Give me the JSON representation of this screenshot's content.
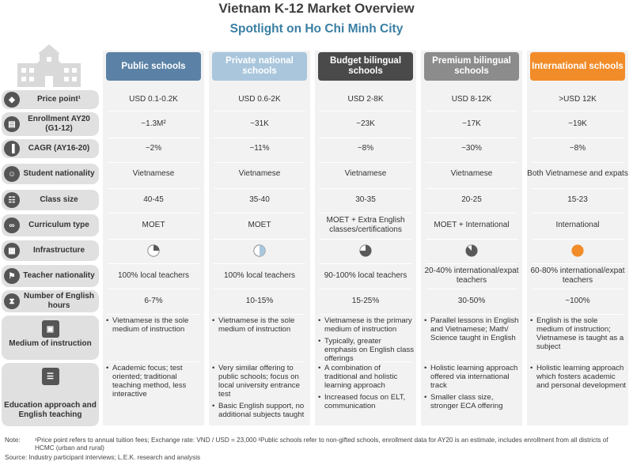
{
  "title": "Vietnam K-12 Market Overview",
  "subtitle": "Spotlight on Ho Chi Minh City",
  "columns": [
    {
      "label": "Public schools",
      "color": "#5b82a6"
    },
    {
      "label": "Private national schools",
      "color": "#a9c6dc"
    },
    {
      "label": "Budget bilingual schools",
      "color": "#4a4a4a"
    },
    {
      "label": "Premium bilingual schools",
      "color": "#8c8c8c"
    },
    {
      "label": "International schools",
      "color": "#f28c28"
    }
  ],
  "rows": {
    "price": {
      "label": "Price point¹",
      "icon": "price-tag-icon",
      "values": [
        "USD 0.1-0.2K",
        "USD 0.6-2K",
        "USD 2-8K",
        "USD 8-12K",
        ">USD 12K"
      ]
    },
    "enrollment": {
      "label": "Enrollment AY20 (G1-12)",
      "icon": "id-card-icon",
      "values": [
        "~1.3M²",
        "~31K",
        "~23K",
        "~17K",
        "~19K"
      ]
    },
    "cagr": {
      "label": "CAGR (AY16-20)",
      "icon": "bar-chart-icon",
      "values": [
        "~2%",
        "~11%",
        "~8%",
        "~30%",
        "~8%"
      ]
    },
    "nationality": {
      "label": "Student nationality",
      "icon": "student-icon",
      "values": [
        "Vietnamese",
        "Vietnamese",
        "Vietnamese",
        "Vietnamese",
        "Both Vietnamese and expats"
      ]
    },
    "class_size": {
      "label": "Class size",
      "icon": "group-icon",
      "values": [
        "40-45",
        "35-40",
        "30-35",
        "20-25",
        "15-23"
      ]
    },
    "curriculum": {
      "label": "Curriculum type",
      "icon": "chain-icon",
      "values": [
        "MOET",
        "MOET",
        "MOET + Extra English classes/certifications",
        "MOET + International",
        "International"
      ]
    },
    "infrastructure": {
      "label": "Infrastructure",
      "icon": "blueprint-icon",
      "levels": [
        0.25,
        0.5,
        0.75,
        0.875,
        1.0
      ]
    },
    "teacher": {
      "label": "Teacher nationality",
      "icon": "flag-icon",
      "values": [
        "100% local teachers",
        "100% local teachers",
        "90-100% local teachers",
        "20-40% international/expat teachers",
        "60-80% international/expat teachers"
      ]
    },
    "english_hours": {
      "label": "Number of English hours",
      "icon": "hourglass-icon",
      "values": [
        "6-7%",
        "10-15%",
        "15-25%",
        "30-50%",
        "~100%"
      ]
    },
    "medium": {
      "label": "Medium of instruction",
      "icon": "teacher-board-icon",
      "bullets": [
        [
          "Vietnamese is the sole medium of instruction"
        ],
        [
          "Vietnamese is the sole medium of instruction"
        ],
        [
          "Vietnamese is the primary medium of instruction",
          "Typically, greater emphasis on English class offerings"
        ],
        [
          "Parallel lessons in English and Vietnamese; Math/ Science taught in English"
        ],
        [
          "English is the sole medium of instruction; Vietnamese is taught as a subject"
        ]
      ]
    },
    "approach": {
      "label": "Education approach and English teaching",
      "icon": "books-icon",
      "bullets": [
        [
          "Academic focus; test oriented; traditional teaching method, less interactive"
        ],
        [
          "Very similar offering to public schools; focus on local university entrance test",
          "Basic English support, no additional subjects taught"
        ],
        [
          "A combination of traditional and holistic learning approach",
          "Increased focus on ELT, communication"
        ],
        [
          "Holistic learning approach offered via international track",
          "Smaller class size, stronger ECA offering"
        ],
        [
          "Holistic learning approach which fosters academic and personal development"
        ]
      ]
    }
  },
  "note_label": "Note:",
  "note_text": "¹Price point refers to annual tuition fees; Exchange rate: VND / USD = 23,000  ²Public schools refer to non-gifted schools, enrollment data for AY20 is an estimate, includes enrollment from all districts of HCMC (urban and rural)",
  "source": "Source: Industry participant interviews; L.E.K. research and analysis"
}
